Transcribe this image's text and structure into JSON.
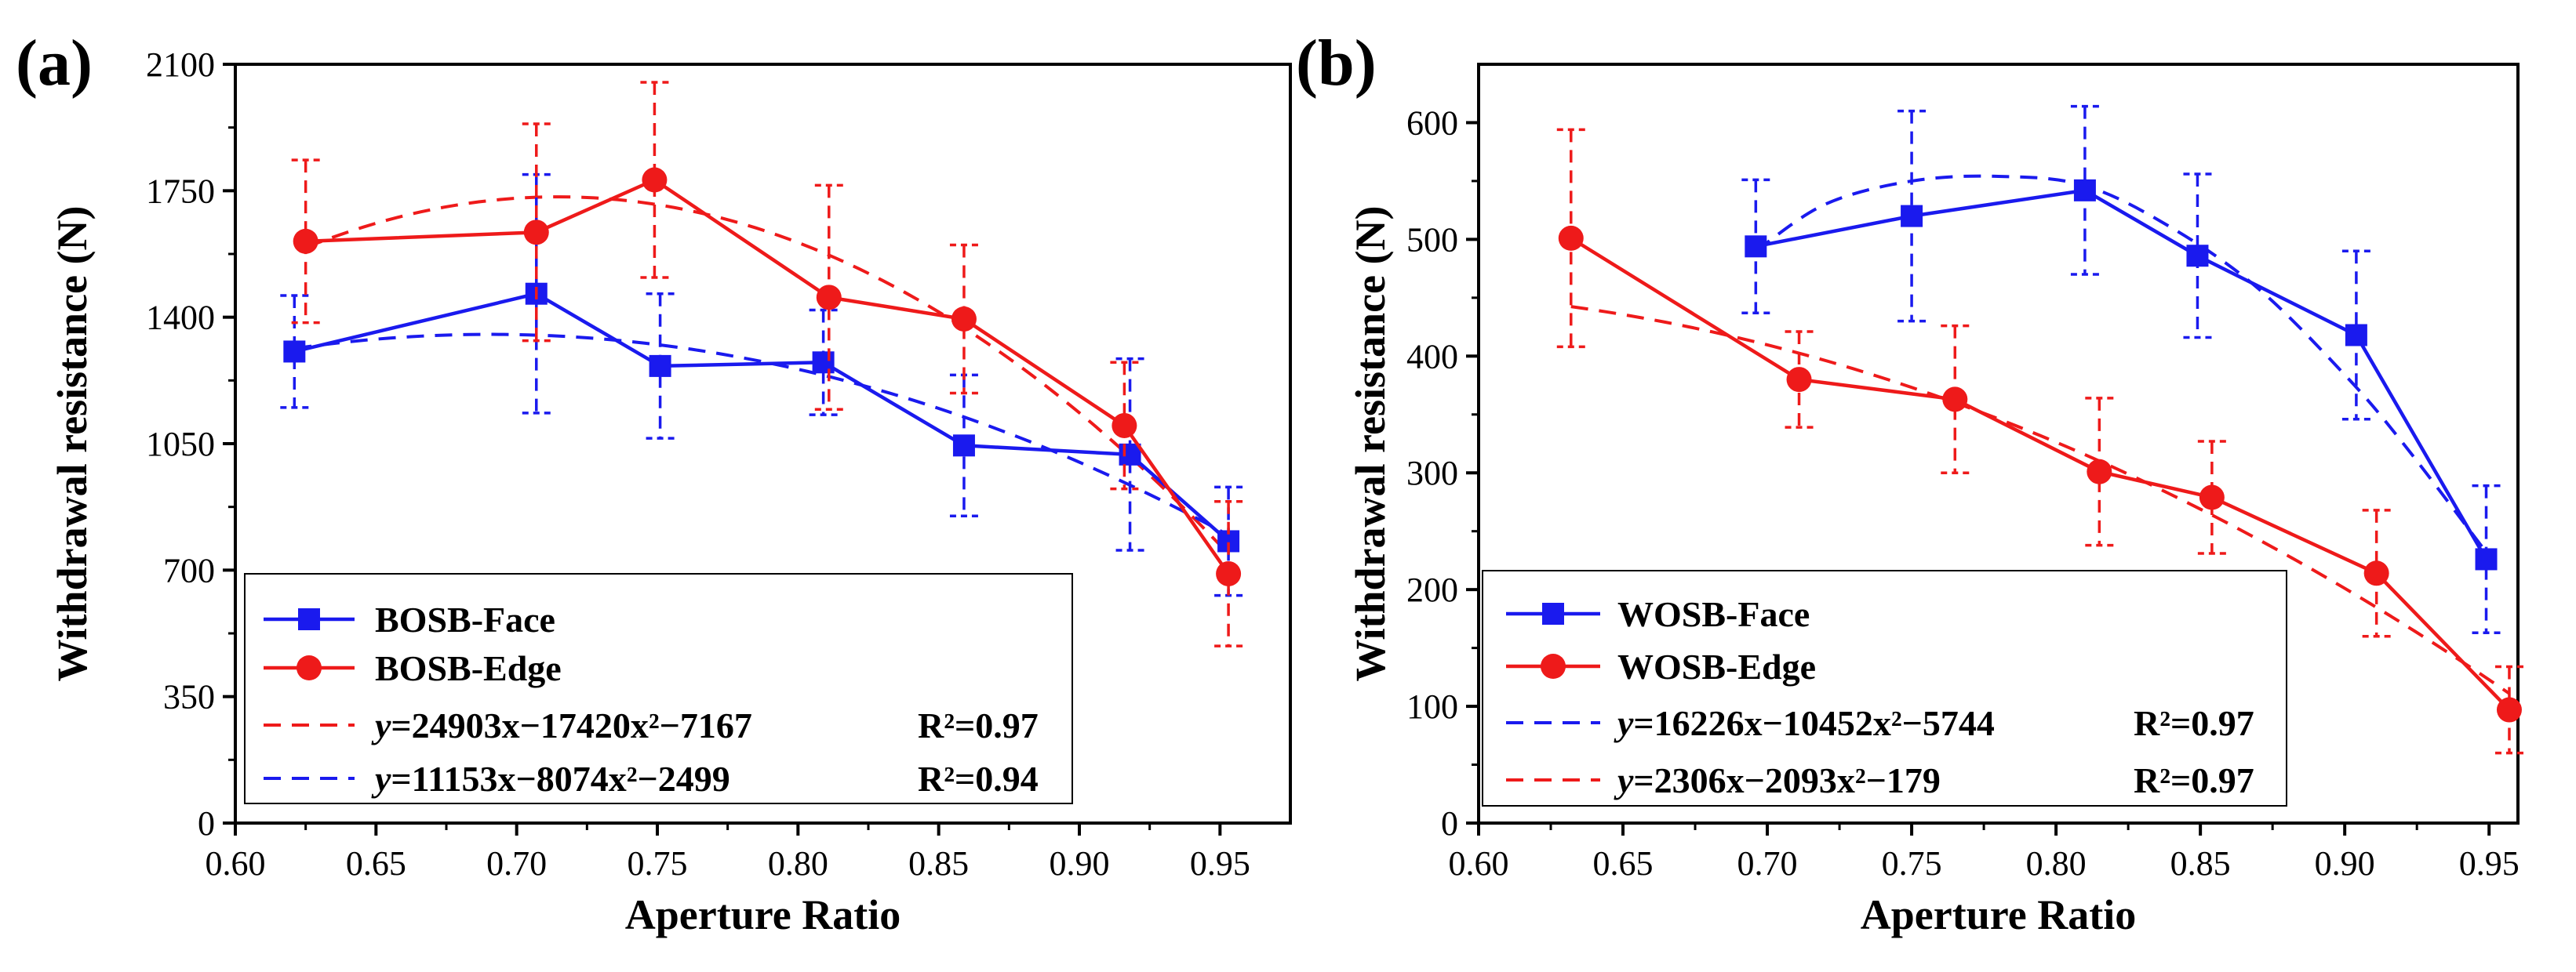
{
  "chart_data": [
    {
      "type": "line",
      "panel_label": "(a)",
      "xlabel": "Aperture Ratio",
      "ylabel": "Withdrawal resistance (N)",
      "xlim": [
        0.6,
        0.975
      ],
      "ylim": [
        0,
        2100
      ],
      "xticks": [
        0.6,
        0.65,
        0.7,
        0.75,
        0.8,
        0.85,
        0.9,
        0.95
      ],
      "xtick_labels": [
        "0.60",
        "0.65",
        "0.70",
        "0.75",
        "0.80",
        "0.85",
        "0.90",
        "0.95"
      ],
      "yticks": [
        0,
        350,
        700,
        1050,
        1400,
        1750,
        2100
      ],
      "ytick_labels": [
        "0",
        "350",
        "700",
        "1050",
        "1400",
        "1750",
        "2100"
      ],
      "legend_position": "bottom-left",
      "series": [
        {
          "name": "BOSB-Face",
          "color": "#1a1aee",
          "marker": "square",
          "x": [
            0.621,
            0.707,
            0.751,
            0.809,
            0.859,
            0.918,
            0.953
          ],
          "y": [
            1305,
            1465,
            1265,
            1275,
            1045,
            1020,
            780
          ],
          "err": [
            155,
            330,
            200,
            145,
            195,
            265,
            150
          ]
        },
        {
          "name": "BOSB-Edge",
          "color": "#ee1a1a",
          "marker": "circle",
          "x": [
            0.625,
            0.707,
            0.749,
            0.811,
            0.859,
            0.916,
            0.953
          ],
          "y": [
            1610,
            1635,
            1780,
            1455,
            1395,
            1100,
            690
          ],
          "err": [
            225,
            300,
            270,
            310,
            205,
            175,
            200
          ]
        }
      ],
      "fits": [
        {
          "color": "#ee1a1a",
          "label_y": "y",
          "label_eq": "=24903x−17420x²−7167",
          "label_r2": "R²=0.97",
          "coefficients": {
            "a": -17420,
            "b": 24903,
            "c": -7167
          },
          "x_range": [
            0.625,
            0.953
          ]
        },
        {
          "color": "#1a1aee",
          "label_y": "y",
          "label_eq": "=11153x−8074x²−2499",
          "label_r2": "R²=0.94",
          "coefficients": {
            "a": -8074,
            "b": 11153,
            "c": -2499
          },
          "x_range": [
            0.621,
            0.953
          ]
        }
      ]
    },
    {
      "type": "line",
      "panel_label": "(b)",
      "xlabel": "Aperture Ratio",
      "ylabel": "Withdrawal resistance (N)",
      "xlim": [
        0.6,
        0.96
      ],
      "ylim": [
        0,
        650
      ],
      "xticks": [
        0.6,
        0.65,
        0.7,
        0.75,
        0.8,
        0.85,
        0.9,
        0.95
      ],
      "xtick_labels": [
        "0.60",
        "0.65",
        "0.70",
        "0.75",
        "0.80",
        "0.85",
        "0.90",
        "0.95"
      ],
      "yticks": [
        0,
        100,
        200,
        300,
        400,
        500,
        600
      ],
      "ytick_labels": [
        "0",
        "100",
        "200",
        "300",
        "400",
        "500",
        "600"
      ],
      "legend_position": "bottom-left",
      "series": [
        {
          "name": "WOSB-Face",
          "color": "#1a1aee",
          "marker": "square",
          "x": [
            0.696,
            0.75,
            0.81,
            0.849,
            0.904,
            0.949
          ],
          "y": [
            494,
            520,
            542,
            486,
            418,
            226
          ],
          "err": [
            57,
            90,
            72,
            70,
            72,
            63
          ]
        },
        {
          "name": "WOSB-Edge",
          "color": "#ee1a1a",
          "marker": "circle",
          "x": [
            0.632,
            0.711,
            0.765,
            0.815,
            0.854,
            0.911,
            0.957
          ],
          "y": [
            501,
            380,
            363,
            301,
            279,
            214,
            97
          ],
          "err": [
            93,
            41,
            63,
            63,
            48,
            54,
            37
          ]
        }
      ],
      "fits": [
        {
          "color": "#1a1aee",
          "label_y": "y",
          "label_eq": "=16226x−10452x²−5744",
          "label_r2": "R²=0.97",
          "curve_points": {
            "x": [
              0.696,
              0.72,
              0.75,
              0.78,
              0.81,
              0.84,
              0.87,
              0.9,
              0.92,
              0.949
            ],
            "y": [
              490,
              530,
              550,
              554,
              546,
              510,
              458,
              384,
              326,
              232
            ]
          }
        },
        {
          "color": "#ee1a1a",
          "label_y": "y",
          "label_eq": "=2306x−2093x²−179",
          "label_r2": "R²=0.97",
          "coefficients": {
            "a": -2093,
            "b": 2306,
            "c": -179
          },
          "x_range": [
            0.632,
            0.957
          ]
        }
      ]
    }
  ]
}
